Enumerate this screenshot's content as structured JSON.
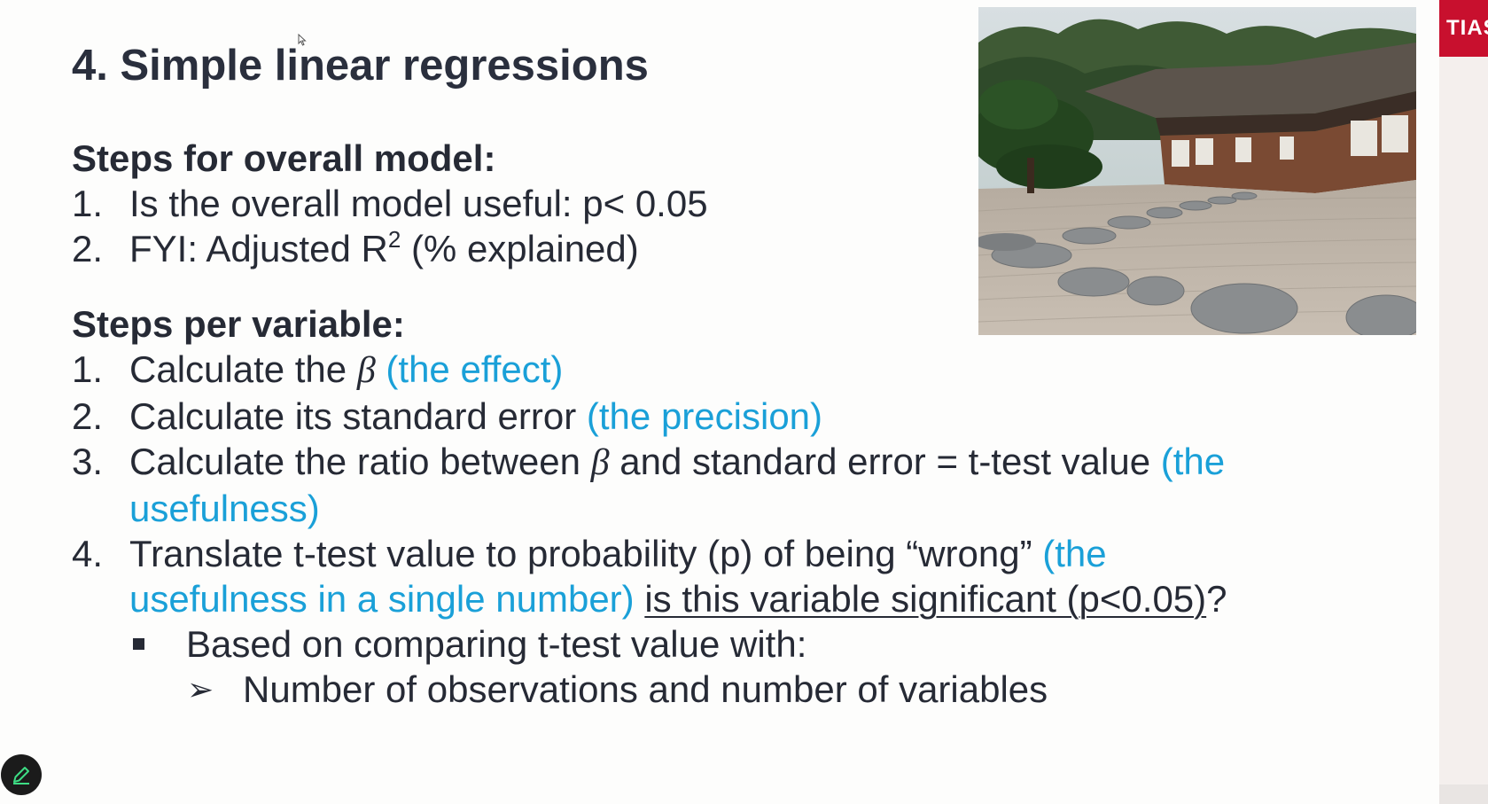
{
  "slide": {
    "title": "4. Simple linear regressions",
    "overall_heading": "Steps for overall model:",
    "overall_steps": [
      {
        "num": "1.",
        "text": "Is the overall model useful: p< 0.05"
      },
      {
        "num": "2.",
        "text_before": "FYI: Adjusted R",
        "sup": "2",
        "text_after": " (% explained)"
      }
    ],
    "variable_heading": "Steps per variable:",
    "variable_steps": [
      {
        "num": "1.",
        "text_before": "Calculate the ",
        "beta": "β",
        "text_after": " ",
        "blue": "(the effect)"
      },
      {
        "num": "2.",
        "text": "Calculate its standard error ",
        "blue": "(the precision)"
      },
      {
        "num": "3.",
        "text_before": "Calculate the ratio between ",
        "beta": "β",
        "text_after": " and standard error = t-test value ",
        "blue_line1": "(the",
        "blue_line2": "usefulness)"
      },
      {
        "num": "4.",
        "text": "Translate t-test value to probability (p) of being “wrong” ",
        "blue_line1": "(the",
        "blue_line2": "usefulness in a single number)",
        "underlined": "is this variable significant (p<0.05)",
        "tail": "?"
      }
    ],
    "sub_bullet": "Based on comparing t-test value with:",
    "sub_sub_arrow": "➢",
    "sub_sub_bullet": "Number of observations and number of variables"
  },
  "logo": {
    "text": "TIAS",
    "color": "#c8102e"
  },
  "icons": {
    "pen": "pen-icon",
    "cursor": "cursor-icon"
  },
  "colors": {
    "text": "#262a35",
    "accent": "#1aa0d8",
    "pen_bg": "#1b1b1b",
    "pen_stroke": "#3ddc84"
  }
}
